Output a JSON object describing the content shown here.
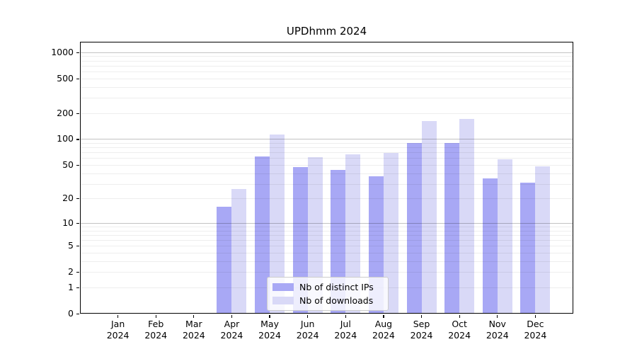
{
  "title": "UPDhmm 2024",
  "chart_data": {
    "type": "bar",
    "title": "UPDhmm 2024",
    "categories": [
      "Jan",
      "Feb",
      "Mar",
      "Apr",
      "May",
      "Jun",
      "Jul",
      "Aug",
      "Sep",
      "Oct",
      "Nov",
      "Dec"
    ],
    "x_sublabel": "2024",
    "series": [
      {
        "name": "Nb of distinct IPs",
        "color": "#a8a8f5",
        "values": [
          0,
          0,
          0,
          16,
          63,
          47,
          44,
          37,
          90,
          90,
          35,
          31
        ]
      },
      {
        "name": "Nb of downloads",
        "color": "#d9d9f7",
        "values": [
          0,
          0,
          0,
          26,
          112,
          61,
          66,
          69,
          162,
          172,
          58,
          48
        ]
      }
    ],
    "y_ticks": [
      0,
      1,
      2,
      5,
      10,
      20,
      50,
      100,
      200,
      500,
      1000
    ],
    "scale": "log1p",
    "ylim": [
      0,
      1320
    ],
    "grid": true,
    "legend_position": "bottom-center",
    "colors": {
      "minor_grid": "rgba(0,0,0,0.065)",
      "major_grid": "rgba(0,0,0,0.235)",
      "axis": "#000000",
      "text": "#000000",
      "background": "#ffffff"
    }
  }
}
